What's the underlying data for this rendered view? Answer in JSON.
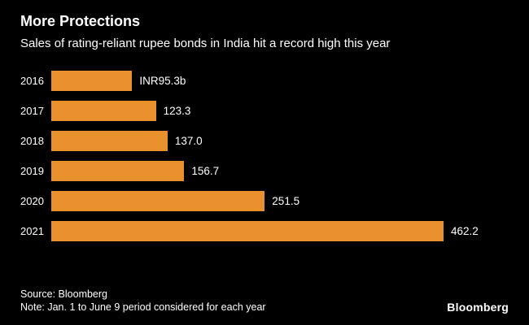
{
  "header": {
    "title": "More Protections",
    "subtitle": "Sales of rating-reliant rupee bonds in India hit a record high this year"
  },
  "footer": {
    "source": "Source: Bloomberg",
    "note": "Note: Jan. 1 to June 9 period considered for each year",
    "brand": "Bloomberg"
  },
  "colors": {
    "background": "#000000",
    "bar": "#E8912C",
    "text": "#FFFFFF"
  },
  "chart_data": {
    "type": "bar",
    "orientation": "horizontal",
    "title": "More Protections",
    "subtitle": "Sales of rating-reliant rupee bonds in India hit a record high this year",
    "categories": [
      "2016",
      "2017",
      "2018",
      "2019",
      "2020",
      "2021"
    ],
    "values": [
      95.3,
      123.3,
      137.0,
      156.7,
      251.5,
      462.2
    ],
    "value_labels": [
      "INR95.3b",
      "123.3",
      "137.0",
      "156.7",
      "251.5",
      "462.2"
    ],
    "unit": "INR billions",
    "xlim": [
      0,
      480
    ],
    "grid": false,
    "legend": false
  }
}
